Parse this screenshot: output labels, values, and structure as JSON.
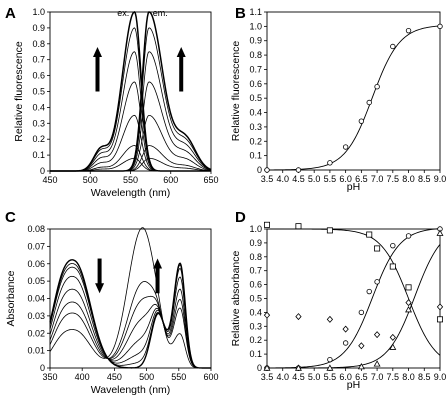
{
  "chart_data": [
    {
      "panel": "A",
      "type": "line",
      "xlabel": "Wavelength (nm)",
      "ylabel": "Relative fluorescence",
      "xlim": [
        450,
        650
      ],
      "ylim": [
        0,
        1.0
      ],
      "xticks": [
        "450",
        "500",
        "550",
        "600",
        "650"
      ],
      "yticks": [
        "0",
        "0.1",
        "0.2",
        "0.3",
        "0.4",
        "0.5",
        "0.6",
        "0.7",
        "0.8",
        "0.9",
        "1.0"
      ],
      "annotations": [
        "ex.",
        "em."
      ],
      "arrows": [
        "up",
        "up"
      ],
      "excitation_peak_nm": 555,
      "emission_peak_nm": 573,
      "series_peak_heights": [
        0.08,
        0.16,
        0.35,
        0.56,
        0.75,
        0.9,
        1.0
      ]
    },
    {
      "panel": "B",
      "type": "scatter",
      "xlabel": "pH",
      "ylabel": "Relative fluorescence",
      "xlim": [
        3.5,
        9.0
      ],
      "ylim": [
        0,
        1.1
      ],
      "xticks": [
        "3.5",
        "4.0",
        "4.5",
        "5.0",
        "5.5",
        "6.0",
        "6.5",
        "7.0",
        "7.5",
        "8.0",
        "8.5",
        "9.0"
      ],
      "yticks": [
        "0",
        "0.1",
        "0.2",
        "0.3",
        "0.4",
        "0.5",
        "0.6",
        "0.7",
        "0.8",
        "0.9",
        "1.0",
        "1.1"
      ],
      "x": [
        3.5,
        4.5,
        5.5,
        6.0,
        6.5,
        6.75,
        7.0,
        7.5,
        8.0,
        9.0
      ],
      "y": [
        0.0,
        0.0,
        0.05,
        0.16,
        0.34,
        0.47,
        0.58,
        0.86,
        0.97,
        1.0
      ],
      "fit_curve": true
    },
    {
      "panel": "C",
      "type": "line",
      "xlabel": "Wavelength (nm)",
      "ylabel": "Absorbance",
      "xlim": [
        350,
        600
      ],
      "ylim": [
        0,
        0.08
      ],
      "xticks": [
        "350",
        "400",
        "450",
        "500",
        "550",
        "600"
      ],
      "yticks": [
        "0",
        "0.01",
        "0.02",
        "0.03",
        "0.04",
        "0.05",
        "0.06",
        "0.07",
        "0.08"
      ],
      "arrows": [
        "down",
        "up"
      ],
      "series": [
        {
          "a390": 0.059,
          "a493": 0.0,
          "a552": 0.06
        },
        {
          "a390": 0.057,
          "a493": 0.003,
          "a552": 0.059
        },
        {
          "a390": 0.055,
          "a493": 0.008,
          "a552": 0.057
        },
        {
          "a390": 0.05,
          "a493": 0.016,
          "a552": 0.052
        },
        {
          "a390": 0.043,
          "a493": 0.027,
          "a552": 0.045
        },
        {
          "a390": 0.036,
          "a493": 0.038,
          "a552": 0.039
        },
        {
          "a390": 0.03,
          "a493": 0.048,
          "a552": 0.034
        },
        {
          "a390": 0.021,
          "a493": 0.08,
          "a552": 0.019
        }
      ]
    },
    {
      "panel": "D",
      "type": "scatter",
      "xlabel": "pH",
      "ylabel": "Relative absorbance",
      "xlim": [
        3.5,
        9.0
      ],
      "ylim": [
        0,
        1.0
      ],
      "xticks": [
        "3.5",
        "4.0",
        "4.5",
        "5.0",
        "5.5",
        "6.0",
        "6.5",
        "7.0",
        "7.5",
        "8.0",
        "8.5",
        "9.0"
      ],
      "yticks": [
        "0",
        "0.1",
        "0.2",
        "0.3",
        "0.4",
        "0.5",
        "0.6",
        "0.7",
        "0.8",
        "0.9",
        "1.0"
      ],
      "series": [
        {
          "marker": "square",
          "x": [
            3.5,
            4.5,
            5.5,
            6.75,
            7.0,
            7.5,
            8.0,
            9.0
          ],
          "y": [
            1.03,
            1.02,
            0.99,
            0.96,
            0.86,
            0.73,
            0.58,
            0.35
          ]
        },
        {
          "marker": "circle",
          "x": [
            3.5,
            4.5,
            5.5,
            6.0,
            6.5,
            6.75,
            7.0,
            7.5,
            8.0,
            9.0
          ],
          "y": [
            0.0,
            0.0,
            0.06,
            0.18,
            0.4,
            0.55,
            0.62,
            0.88,
            0.95,
            1.0
          ]
        },
        {
          "marker": "triangle",
          "x": [
            3.5,
            4.5,
            5.5,
            6.5,
            7.0,
            7.5,
            8.0,
            9.0
          ],
          "y": [
            0.0,
            0.0,
            0.0,
            0.01,
            0.03,
            0.15,
            0.42,
            0.97
          ]
        },
        {
          "marker": "diamond",
          "x": [
            3.5,
            4.5,
            5.5,
            6.0,
            6.5,
            7.0,
            7.5,
            8.0,
            9.0
          ],
          "y": [
            0.38,
            0.37,
            0.35,
            0.28,
            0.16,
            0.24,
            0.22,
            0.47,
            0.44
          ]
        }
      ]
    }
  ],
  "panel_labels": [
    "A",
    "B",
    "C",
    "D"
  ]
}
